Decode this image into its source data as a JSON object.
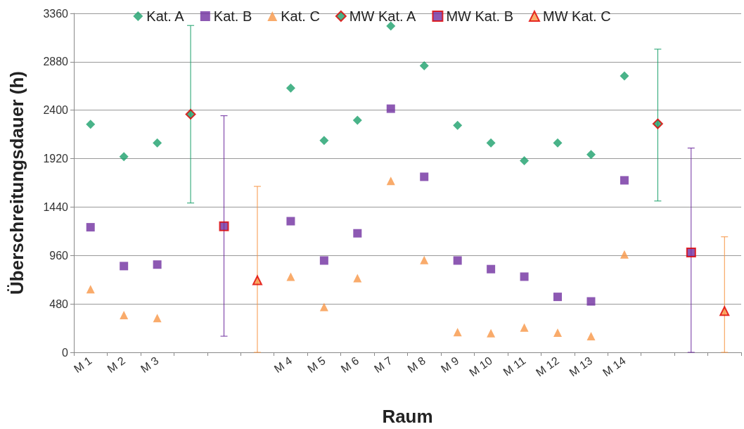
{
  "chart_data": {
    "type": "scatter",
    "xlabel": "Raum",
    "ylabel": "Überschreitungsdauer (h)",
    "categories": [
      "M 1",
      "M 2",
      "M 3",
      null,
      null,
      null,
      "M 4",
      "M 5",
      "M 6",
      "M 7",
      "M 8",
      "M 9",
      "M 10",
      "M 11",
      "M 12",
      "M 13",
      "M 14",
      null,
      null,
      null
    ],
    "ylim": [
      0,
      3360
    ],
    "yticks": [
      0,
      480,
      960,
      1440,
      1920,
      2400,
      2880,
      3360
    ],
    "grid": "y",
    "legend": "top",
    "series": [
      {
        "name": "Kat. A",
        "color": "#1ba06b",
        "marker": "diamond",
        "values": [
          2260,
          1940,
          2075,
          null,
          null,
          null,
          2620,
          2100,
          2300,
          3235,
          2840,
          2250,
          2075,
          1900,
          2075,
          1960,
          2740,
          null,
          null,
          null
        ]
      },
      {
        "name": "Kat. B",
        "color": "#7030a0",
        "marker": "square",
        "values": [
          1240,
          855,
          870,
          null,
          null,
          null,
          1300,
          910,
          1180,
          2415,
          1740,
          910,
          825,
          750,
          550,
          505,
          1705,
          null,
          null,
          null
        ]
      },
      {
        "name": "Kat. C",
        "color": "#f79646",
        "marker": "triangle",
        "values": [
          625,
          370,
          340,
          null,
          null,
          null,
          750,
          450,
          735,
          1700,
          915,
          200,
          190,
          245,
          195,
          160,
          970,
          null,
          null,
          null
        ]
      },
      {
        "name": "MW Kat. A",
        "color": "#1ba06b",
        "marker": "diamond",
        "values": [
          null,
          null,
          null,
          2360,
          null,
          null,
          null,
          null,
          null,
          null,
          null,
          null,
          null,
          null,
          null,
          null,
          null,
          2265,
          null,
          null
        ],
        "errors": [
          null,
          null,
          null,
          [
            1480,
            3240
          ],
          null,
          null,
          null,
          null,
          null,
          null,
          null,
          null,
          null,
          null,
          null,
          null,
          null,
          [
            1500,
            3005
          ],
          null,
          null
        ]
      },
      {
        "name": "MW Kat. B",
        "color": "#7030a0",
        "marker": "square",
        "values": [
          null,
          null,
          null,
          null,
          1250,
          null,
          null,
          null,
          null,
          null,
          null,
          null,
          null,
          null,
          null,
          null,
          null,
          null,
          990,
          null
        ],
        "errors": [
          null,
          null,
          null,
          null,
          [
            160,
            2345
          ],
          null,
          null,
          null,
          null,
          null,
          null,
          null,
          null,
          null,
          null,
          null,
          null,
          null,
          [
            0,
            2025
          ],
          null
        ]
      },
      {
        "name": "MW Kat. C",
        "color": "#f79646",
        "marker": "triangle",
        "values": [
          null,
          null,
          null,
          null,
          null,
          715,
          null,
          null,
          null,
          null,
          null,
          null,
          null,
          null,
          null,
          null,
          null,
          null,
          null,
          410
        ],
        "errors": [
          null,
          null,
          null,
          null,
          null,
          [
            0,
            1645
          ],
          null,
          null,
          null,
          null,
          null,
          null,
          null,
          null,
          null,
          null,
          null,
          null,
          null,
          [
            0,
            1145
          ]
        ]
      }
    ]
  }
}
